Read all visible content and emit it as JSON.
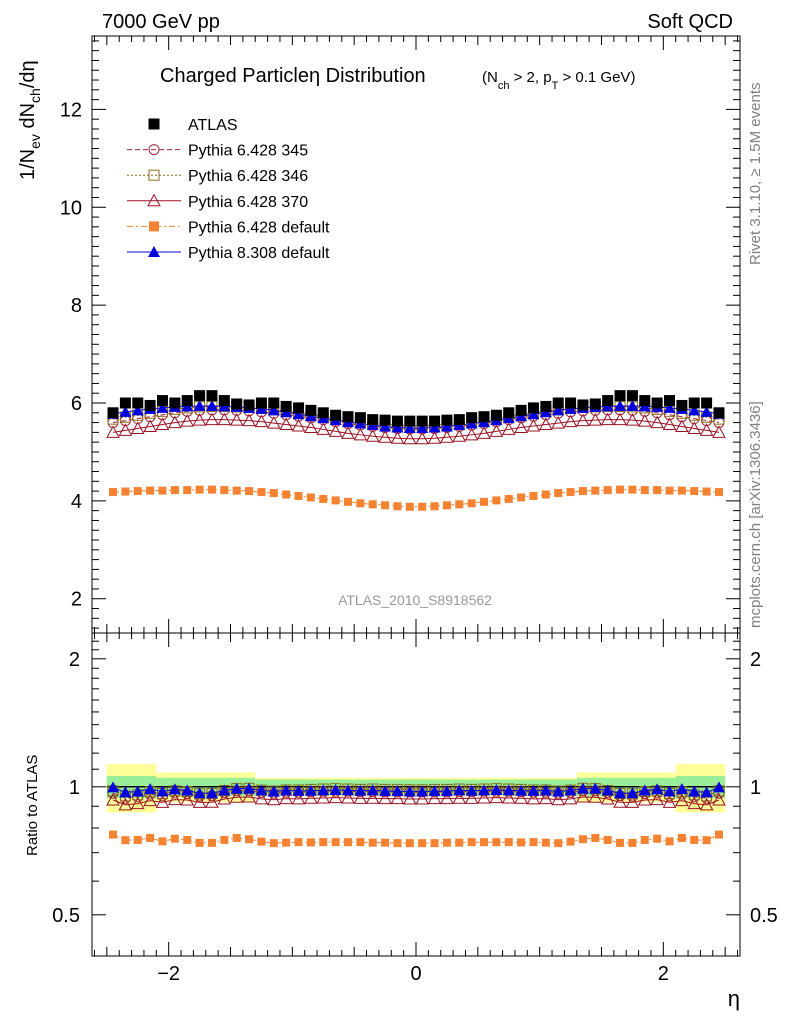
{
  "header": {
    "energy_label": "7000 GeV pp",
    "process_label": "Soft QCD",
    "rivet_label": "Rivet 3.1.10, ≥ 1.5M events",
    "source_label": "mcplots.cern.ch [arXiv:1306.3436]",
    "analysis_label": "ATLAS_2010_S8918562"
  },
  "title": {
    "main": "Charged Particleη Distribution",
    "cuts": "(N_ch > 2, p_T > 0.1 GeV)"
  },
  "axes": {
    "y_main_label": "1/N_ev dN_ch/dη",
    "y_ratio_label": "Ratio to ATLAS",
    "x_label": "η"
  },
  "chart_data": [
    {
      "type": "scatter",
      "panel": "main",
      "x": [
        -2.45,
        -2.35,
        -2.25,
        -2.15,
        -2.05,
        -1.95,
        -1.85,
        -1.75,
        -1.65,
        -1.55,
        -1.45,
        -1.35,
        -1.25,
        -1.15,
        -1.05,
        -0.95,
        -0.85,
        -0.75,
        -0.65,
        -0.55,
        -0.45,
        -0.35,
        -0.25,
        -0.15,
        -0.05,
        0.05,
        0.15,
        0.25,
        0.35,
        0.45,
        0.55,
        0.65,
        0.75,
        0.85,
        0.95,
        1.05,
        1.15,
        1.25,
        1.35,
        1.45,
        1.55,
        1.65,
        1.75,
        1.85,
        1.95,
        2.05,
        2.15,
        2.25,
        2.35,
        2.45
      ],
      "xlim": [
        -2.62,
        2.62
      ],
      "ylim": [
        1.3,
        13.5
      ],
      "y_ticks": [
        2,
        4,
        6,
        8,
        10,
        12
      ],
      "x_ticks": [
        -2,
        0,
        2
      ],
      "x_tick_labels": [
        "−2",
        "0",
        "2"
      ],
      "legend_position": "top-left",
      "series": [
        {
          "name": "ATLAS",
          "color": "#000000",
          "marker": "filled-square",
          "values": [
            5.8,
            6.0,
            6.0,
            5.95,
            6.05,
            6.0,
            6.05,
            6.15,
            6.15,
            6.05,
            5.98,
            5.96,
            6.0,
            6.0,
            5.93,
            5.9,
            5.85,
            5.8,
            5.75,
            5.72,
            5.7,
            5.66,
            5.65,
            5.63,
            5.63,
            5.63,
            5.63,
            5.65,
            5.66,
            5.7,
            5.72,
            5.75,
            5.8,
            5.85,
            5.9,
            5.93,
            6.0,
            6.0,
            5.96,
            5.98,
            6.05,
            6.15,
            6.15,
            6.05,
            6.0,
            6.05,
            5.95,
            6.0,
            6.0,
            5.8
          ]
        },
        {
          "name": "Pythia 6.428 345",
          "color": "#a1253a",
          "marker": "open-circle",
          "line": "dashed",
          "values": [
            5.6,
            5.64,
            5.68,
            5.72,
            5.76,
            5.8,
            5.83,
            5.85,
            5.86,
            5.86,
            5.85,
            5.84,
            5.82,
            5.79,
            5.76,
            5.73,
            5.7,
            5.66,
            5.62,
            5.58,
            5.55,
            5.52,
            5.5,
            5.48,
            5.47,
            5.47,
            5.48,
            5.5,
            5.52,
            5.55,
            5.58,
            5.62,
            5.66,
            5.7,
            5.73,
            5.76,
            5.79,
            5.82,
            5.84,
            5.85,
            5.86,
            5.86,
            5.85,
            5.83,
            5.8,
            5.76,
            5.72,
            5.68,
            5.64,
            5.6
          ]
        },
        {
          "name": "Pythia 6.428 346",
          "color": "#8b6a1c",
          "marker": "open-square",
          "line": "dotted",
          "values": [
            5.67,
            5.71,
            5.75,
            5.79,
            5.83,
            5.87,
            5.9,
            5.92,
            5.93,
            5.93,
            5.92,
            5.91,
            5.89,
            5.86,
            5.83,
            5.8,
            5.77,
            5.73,
            5.69,
            5.65,
            5.62,
            5.59,
            5.57,
            5.55,
            5.54,
            5.54,
            5.55,
            5.57,
            5.59,
            5.62,
            5.65,
            5.69,
            5.73,
            5.77,
            5.8,
            5.83,
            5.86,
            5.89,
            5.91,
            5.92,
            5.93,
            5.93,
            5.92,
            5.9,
            5.87,
            5.83,
            5.79,
            5.75,
            5.71,
            5.67
          ]
        },
        {
          "name": "Pythia 6.428 370",
          "color": "#9b1020",
          "marker": "open-triangle",
          "line": "solid",
          "values": [
            5.4,
            5.44,
            5.48,
            5.52,
            5.56,
            5.6,
            5.63,
            5.65,
            5.66,
            5.66,
            5.65,
            5.64,
            5.62,
            5.59,
            5.56,
            5.53,
            5.5,
            5.46,
            5.42,
            5.38,
            5.35,
            5.32,
            5.3,
            5.28,
            5.27,
            5.27,
            5.28,
            5.3,
            5.32,
            5.35,
            5.38,
            5.42,
            5.46,
            5.5,
            5.53,
            5.56,
            5.59,
            5.62,
            5.64,
            5.65,
            5.66,
            5.66,
            5.65,
            5.63,
            5.6,
            5.56,
            5.52,
            5.48,
            5.44,
            5.4
          ]
        },
        {
          "name": "Pythia 6.428 default",
          "color": "#f58231",
          "marker": "filled-square",
          "line": "dash-dot",
          "values": [
            4.18,
            4.19,
            4.2,
            4.21,
            4.21,
            4.22,
            4.22,
            4.23,
            4.23,
            4.22,
            4.21,
            4.2,
            4.18,
            4.16,
            4.13,
            4.1,
            4.07,
            4.04,
            4.01,
            3.98,
            3.95,
            3.93,
            3.91,
            3.89,
            3.88,
            3.88,
            3.89,
            3.91,
            3.93,
            3.95,
            3.98,
            4.01,
            4.04,
            4.07,
            4.1,
            4.13,
            4.16,
            4.18,
            4.2,
            4.21,
            4.22,
            4.23,
            4.23,
            4.22,
            4.22,
            4.21,
            4.21,
            4.2,
            4.19,
            4.18
          ]
        },
        {
          "name": "Pythia 8.308 default",
          "color": "#0000dd",
          "marker": "filled-triangle",
          "line": "solid",
          "values": [
            5.78,
            5.82,
            5.85,
            5.88,
            5.9,
            5.92,
            5.93,
            5.94,
            5.94,
            5.93,
            5.92,
            5.9,
            5.88,
            5.85,
            5.81,
            5.77,
            5.73,
            5.69,
            5.65,
            5.61,
            5.58,
            5.55,
            5.52,
            5.5,
            5.49,
            5.49,
            5.5,
            5.52,
            5.55,
            5.58,
            5.61,
            5.65,
            5.69,
            5.73,
            5.77,
            5.81,
            5.85,
            5.88,
            5.9,
            5.92,
            5.93,
            5.94,
            5.94,
            5.93,
            5.92,
            5.9,
            5.88,
            5.85,
            5.82,
            5.78
          ]
        }
      ]
    },
    {
      "type": "scatter",
      "panel": "ratio",
      "ylim": [
        0.4,
        2.3
      ],
      "y_ticks": [
        0.5,
        1,
        2
      ],
      "y_tick_labels": [
        "0.5",
        "1",
        "2"
      ],
      "band_edges": [
        -2.5,
        -2.1,
        -1.3,
        1.3,
        2.1,
        2.5
      ],
      "uncertainty_bands": {
        "total_yellow_half_width": [
          0.13,
          0.08,
          0.05,
          0.08,
          0.13
        ],
        "stat_green_half_width": [
          0.06,
          0.05,
          0.04,
          0.05,
          0.06
        ]
      },
      "series": [
        {
          "name": "Pythia 6.428 345",
          "color": "#a1253a",
          "values": [
            0.966,
            0.94,
            0.947,
            0.961,
            0.952,
            0.967,
            0.964,
            0.951,
            0.953,
            0.969,
            0.978,
            0.98,
            0.97,
            0.965,
            0.971,
            0.971,
            0.974,
            0.976,
            0.977,
            0.976,
            0.974,
            0.975,
            0.973,
            0.973,
            0.972,
            0.972,
            0.973,
            0.973,
            0.975,
            0.974,
            0.976,
            0.977,
            0.976,
            0.974,
            0.971,
            0.971,
            0.965,
            0.97,
            0.98,
            0.978,
            0.969,
            0.953,
            0.951,
            0.964,
            0.967,
            0.952,
            0.961,
            0.947,
            0.94,
            0.966
          ]
        },
        {
          "name": "Pythia 6.428 346",
          "color": "#8b6a1c",
          "values": [
            0.978,
            0.952,
            0.958,
            0.973,
            0.964,
            0.978,
            0.975,
            0.963,
            0.964,
            0.98,
            0.99,
            0.992,
            0.982,
            0.977,
            0.983,
            0.983,
            0.986,
            0.988,
            0.99,
            0.988,
            0.986,
            0.988,
            0.986,
            0.986,
            0.984,
            0.984,
            0.986,
            0.986,
            0.988,
            0.986,
            0.988,
            0.99,
            0.988,
            0.986,
            0.983,
            0.983,
            0.977,
            0.982,
            0.992,
            0.99,
            0.98,
            0.964,
            0.963,
            0.975,
            0.978,
            0.964,
            0.973,
            0.958,
            0.952,
            0.978
          ]
        },
        {
          "name": "Pythia 6.428 370",
          "color": "#9b1020",
          "values": [
            0.931,
            0.907,
            0.913,
            0.928,
            0.919,
            0.933,
            0.931,
            0.919,
            0.92,
            0.936,
            0.945,
            0.946,
            0.937,
            0.932,
            0.938,
            0.937,
            0.94,
            0.941,
            0.943,
            0.941,
            0.939,
            0.94,
            0.938,
            0.938,
            0.936,
            0.936,
            0.938,
            0.938,
            0.94,
            0.939,
            0.941,
            0.943,
            0.941,
            0.94,
            0.937,
            0.938,
            0.932,
            0.937,
            0.946,
            0.945,
            0.936,
            0.92,
            0.919,
            0.931,
            0.933,
            0.919,
            0.928,
            0.913,
            0.907,
            0.931
          ]
        },
        {
          "name": "Pythia 6.428 default",
          "color": "#f58231",
          "values": [
            0.772,
            0.749,
            0.75,
            0.758,
            0.744,
            0.755,
            0.75,
            0.738,
            0.738,
            0.75,
            0.758,
            0.753,
            0.743,
            0.737,
            0.739,
            0.741,
            0.74,
            0.741,
            0.741,
            0.741,
            0.741,
            0.739,
            0.739,
            0.737,
            0.737,
            0.737,
            0.737,
            0.739,
            0.739,
            0.741,
            0.741,
            0.741,
            0.741,
            0.74,
            0.741,
            0.739,
            0.737,
            0.743,
            0.753,
            0.758,
            0.75,
            0.738,
            0.738,
            0.75,
            0.755,
            0.744,
            0.758,
            0.75,
            0.749,
            0.772
          ]
        },
        {
          "name": "Pythia 8.308 default",
          "color": "#0000dd",
          "values": [
            0.997,
            0.97,
            0.975,
            0.988,
            0.975,
            0.987,
            0.98,
            0.966,
            0.966,
            0.98,
            0.99,
            0.99,
            0.98,
            0.975,
            0.98,
            0.978,
            0.979,
            0.981,
            0.983,
            0.981,
            0.979,
            0.981,
            0.977,
            0.977,
            0.975,
            0.975,
            0.977,
            0.977,
            0.981,
            0.979,
            0.981,
            0.983,
            0.981,
            0.979,
            0.978,
            0.98,
            0.975,
            0.98,
            0.99,
            0.99,
            0.98,
            0.966,
            0.966,
            0.98,
            0.987,
            0.975,
            0.988,
            0.975,
            0.97,
            0.997
          ]
        }
      ]
    }
  ]
}
